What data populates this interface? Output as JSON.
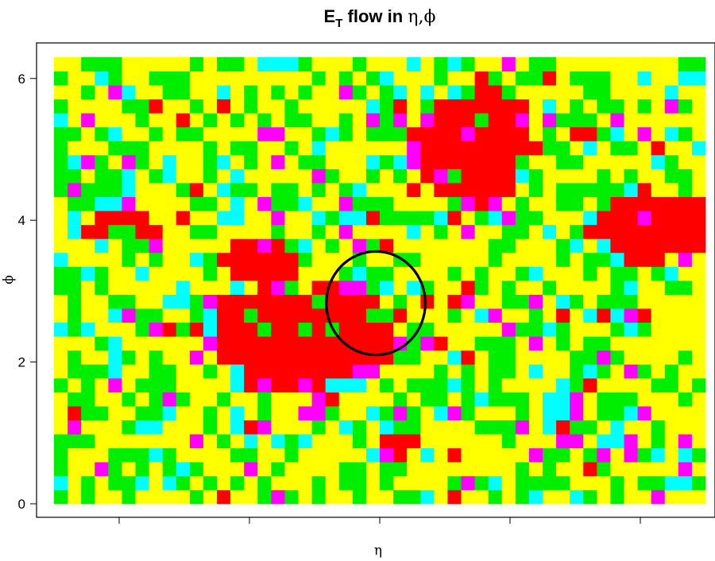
{
  "chart_data": {
    "type": "heatmap",
    "title": {
      "main": "E",
      "subscript": "T",
      "text": " flow in ",
      "vars": "η,ϕ"
    },
    "xlabel": "η",
    "ylabel": "ϕ",
    "xlim": [
      -2.5,
      2.5
    ],
    "ylim": [
      0,
      6.3
    ],
    "x_ticks": [
      -2,
      -1,
      0,
      1,
      2
    ],
    "y_ticks": [
      0,
      2,
      4,
      6
    ],
    "y_tick_labels": [
      "0",
      "2",
      "4",
      "6"
    ],
    "grid": "off",
    "palette": {
      "background": "#ffffff",
      "yellow": "#ffff00",
      "green": "#00ee00",
      "cyan": "#00ffff",
      "magenta": "#ff00ff",
      "red": "#ff0000",
      "circle": "#000000"
    },
    "levels": [
      "yellow",
      "green",
      "cyan",
      "magenta",
      "red"
    ],
    "grid_size": {
      "eta_bins": 48,
      "phi_bins": 32
    },
    "jet_regions": [
      {
        "eta": -0.6,
        "phi": 2.4,
        "r_eta": 0.7,
        "r_phi": 0.65
      },
      {
        "eta": -0.9,
        "phi": 3.3,
        "r_eta": 0.25,
        "r_phi": 0.4
      },
      {
        "eta": 0.72,
        "phi": 5.1,
        "r_eta": 0.38,
        "r_phi": 0.75
      },
      {
        "eta": 2.1,
        "phi": 3.9,
        "r_eta": 0.45,
        "r_phi": 0.45
      },
      {
        "eta": -2.0,
        "phi": 3.9,
        "r_eta": 0.25,
        "r_phi": 0.18
      },
      {
        "eta": 0.15,
        "phi": 0.85,
        "r_eta": 0.12,
        "r_phi": 0.18
      }
    ],
    "circle": {
      "eta": -0.03,
      "phi": 2.83,
      "radius_eta": 0.38,
      "radius_phi": 0.73
    }
  }
}
